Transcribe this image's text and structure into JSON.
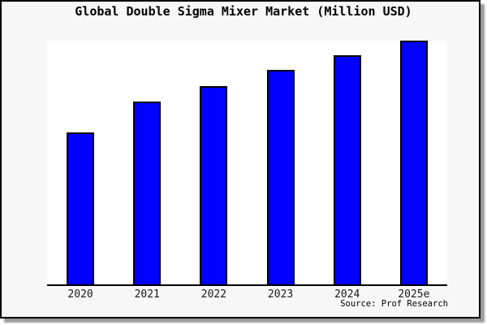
{
  "title": "Global Double Sigma Mixer Market (Million USD)",
  "source_label": "Source: Prof Research",
  "colors": {
    "bar_fill": "#0000ff",
    "bar_edge": "#000000",
    "figure_bg": "#f7f7f7",
    "plot_bg": "#ffffff",
    "frame_border": "#000000",
    "shadow": "#9a9a9a",
    "text": "#000000"
  },
  "chart_data": {
    "type": "bar",
    "title": "Global Double Sigma Mixer Market (Million USD)",
    "categories": [
      "2020",
      "2021",
      "2022",
      "2023",
      "2024",
      "2025e"
    ],
    "values": [
      62.5,
      75,
      81.5,
      88,
      94,
      100
    ],
    "values_note": "relative heights estimated from bars; no y-axis tick labels visible (2025e bar = 100)",
    "xlabel": "",
    "ylabel": "",
    "ylim": [
      0,
      100
    ],
    "grid": false,
    "legend": null,
    "bar_color": "#0000ff",
    "bar_edge_color": "#000000",
    "source": "Source: Prof Research"
  }
}
